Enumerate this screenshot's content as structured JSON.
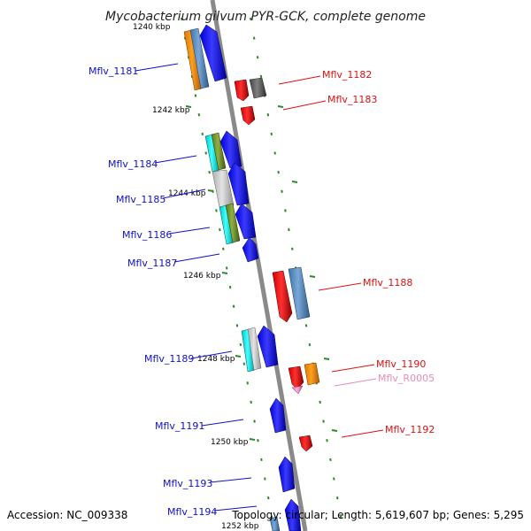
{
  "title": "Mycobacterium gilvum PYR-GCK, complete genome",
  "footer": {
    "accession": "Accession: NC_009338",
    "topology": "Topology: circular; Length: 5,619,607 bp; Genes: 5,295"
  },
  "colors": {
    "backbone": "#8a8a8a",
    "plus_strand_label": "#1010cc",
    "minus_strand_label": "#dd1111",
    "rna_label": "#ee88bb",
    "tick": "#2b8a2b"
  },
  "kbp_labels": [
    "1240 kbp",
    "1242 kbp",
    "1244 kbp",
    "1246 kbp",
    "1248 kbp",
    "1250 kbp",
    "1252 kbp"
  ],
  "genes_left": [
    "Mflv_1181",
    "Mflv_1184",
    "Mflv_1185",
    "Mflv_1186",
    "Mflv_1187",
    "Mflv_1189",
    "Mflv_1191",
    "Mflv_1193",
    "Mflv_1194"
  ],
  "genes_right": [
    "Mflv_1182",
    "Mflv_1183",
    "Mflv_1188",
    "Mflv_1190",
    "Mflv_R0005",
    "Mflv_1192"
  ]
}
